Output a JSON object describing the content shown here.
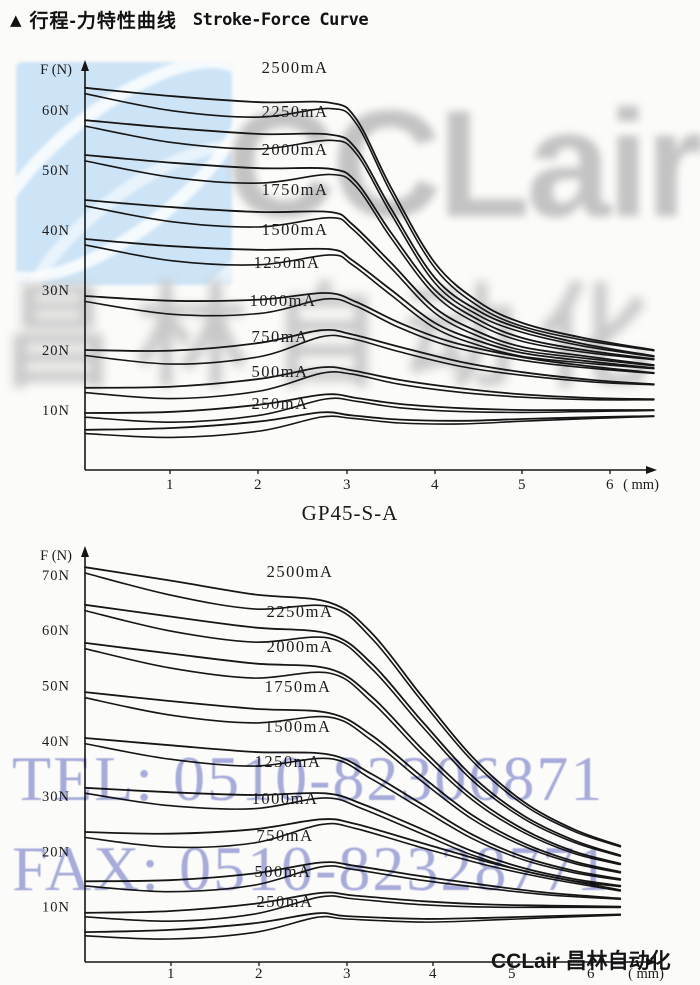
{
  "page": {
    "header_marker": "▲",
    "header_title_cn": "行程-力特性曲线",
    "header_title_en": "Stroke-Force Curve",
    "footer_brand": "CCLair 昌林自动化"
  },
  "watermarks": {
    "logo_text": "CCLair",
    "logo_cn": "昌林自动化",
    "tel": "TEL: 0510-82306871",
    "fax": "FAX: 0510-82328771",
    "tel_color": "#7c84cf",
    "logo_gray": "#c3c3c3",
    "logo_blue_bg": "#cde4f6"
  },
  "chart_data": [
    {
      "type": "line",
      "title": "",
      "y_label": "F (N)",
      "x_unit_label": "( mm)",
      "x_ticks": [
        "1",
        "2",
        "3",
        "4",
        "5",
        "6"
      ],
      "y_tick_labels": [
        "10N",
        "20N",
        "30N",
        "40N",
        "50N",
        "60N"
      ],
      "x_range_mm": [
        0,
        6.5
      ],
      "y_range_N": [
        0,
        68
      ],
      "grid": false,
      "legend": "inline-labels",
      "series": [
        {
          "label": "2500mA",
          "current_mA": 2500,
          "hysteresis_N": 2.8,
          "points_mm_N": [
            [
              0,
              63.7
            ],
            [
              1,
              62.3
            ],
            [
              2,
              61.3
            ],
            [
              2.8,
              61.2
            ],
            [
              3.1,
              58.5
            ],
            [
              3.5,
              47
            ],
            [
              4,
              34.5
            ],
            [
              4.5,
              28
            ],
            [
              5,
              24.5
            ],
            [
              5.7,
              22
            ],
            [
              6.5,
              20
            ]
          ]
        },
        {
          "label": "2250mA",
          "current_mA": 2250,
          "hysteresis_N": 2.8,
          "points_mm_N": [
            [
              0,
              58.3
            ],
            [
              1,
              57
            ],
            [
              2,
              56
            ],
            [
              2.8,
              55.9
            ],
            [
              3.1,
              53.5
            ],
            [
              3.5,
              43.5
            ],
            [
              4,
              32
            ],
            [
              4.5,
              26.5
            ],
            [
              5,
              23.5
            ],
            [
              5.7,
              21
            ],
            [
              6.5,
              19
            ]
          ]
        },
        {
          "label": "2000mA",
          "current_mA": 2000,
          "hysteresis_N": 2.8,
          "points_mm_N": [
            [
              0,
              52.5
            ],
            [
              1,
              51.2
            ],
            [
              2,
              50.3
            ],
            [
              2.8,
              50.2
            ],
            [
              3.1,
              48
            ],
            [
              3.5,
              39.5
            ],
            [
              4,
              30
            ],
            [
              4.5,
              25
            ],
            [
              5,
              22
            ],
            [
              5.7,
              20
            ],
            [
              6.5,
              18.5
            ]
          ]
        },
        {
          "label": "1750mA",
          "current_mA": 1750,
          "hysteresis_N": 2.8,
          "points_mm_N": [
            [
              0,
              45
            ],
            [
              1,
              43.8
            ],
            [
              2,
              43
            ],
            [
              2.8,
              43
            ],
            [
              3.05,
              41
            ],
            [
              3.5,
              34.5
            ],
            [
              4,
              27
            ],
            [
              4.5,
              23
            ],
            [
              5,
              20.5
            ],
            [
              5.7,
              19
            ],
            [
              6.5,
              17.5
            ]
          ]
        },
        {
          "label": "1500mA",
          "current_mA": 1500,
          "hysteresis_N": 2.8,
          "points_mm_N": [
            [
              0,
              38.5
            ],
            [
              1,
              37.3
            ],
            [
              2,
              36.7
            ],
            [
              2.8,
              36.8
            ],
            [
              3.05,
              35
            ],
            [
              3.5,
              30
            ],
            [
              4,
              24.5
            ],
            [
              4.5,
              21.5
            ],
            [
              5,
              19.5
            ],
            [
              5.7,
              18.2
            ],
            [
              6.5,
              17
            ]
          ]
        },
        {
          "label": "1250mA",
          "current_mA": 1250,
          "hysteresis_N": 2.6,
          "points_mm_N": [
            [
              0,
              29
            ],
            [
              1,
              28.2
            ],
            [
              2,
              28.4
            ],
            [
              2.75,
              29.5
            ],
            [
              3.1,
              28
            ],
            [
              3.6,
              24.5
            ],
            [
              4.2,
              21.3
            ],
            [
              5,
              18.8
            ],
            [
              5.7,
              17.4
            ],
            [
              6.5,
              16.2
            ]
          ]
        },
        {
          "label": "1000mA",
          "current_mA": 1000,
          "hysteresis_N": 2.6,
          "points_mm_N": [
            [
              0,
              20
            ],
            [
              1,
              19.9
            ],
            [
              2,
              21.2
            ],
            [
              2.7,
              23.3
            ],
            [
              3.05,
              22.6
            ],
            [
              3.6,
              20.5
            ],
            [
              4.3,
              18
            ],
            [
              5,
              16.3
            ],
            [
              5.8,
              15
            ],
            [
              6.5,
              14.3
            ]
          ]
        },
        {
          "label": "750mA",
          "current_mA": 750,
          "hysteresis_N": 2.3,
          "points_mm_N": [
            [
              0,
              13.7
            ],
            [
              1,
              13.9
            ],
            [
              2,
              15.2
            ],
            [
              2.7,
              17.1
            ],
            [
              3.05,
              16.6
            ],
            [
              3.6,
              15
            ],
            [
              4.3,
              13.6
            ],
            [
              5,
              12.6
            ],
            [
              5.8,
              12
            ],
            [
              6.5,
              11.8
            ]
          ]
        },
        {
          "label": "500mA",
          "current_mA": 500,
          "hysteresis_N": 2.0,
          "points_mm_N": [
            [
              0,
              9.5
            ],
            [
              1,
              9.7
            ],
            [
              2,
              10.9
            ],
            [
              2.75,
              12.6
            ],
            [
              3.1,
              12
            ],
            [
              3.6,
              11
            ],
            [
              4.3,
              10.3
            ],
            [
              5,
              10
            ],
            [
              5.8,
              10
            ],
            [
              6.5,
              10
            ]
          ]
        },
        {
          "label": "250mA",
          "current_mA": 250,
          "hysteresis_N": 1.8,
          "points_mm_N": [
            [
              0,
              6.7
            ],
            [
              1,
              7
            ],
            [
              2,
              8.1
            ],
            [
              2.7,
              9.6
            ],
            [
              3.05,
              9.1
            ],
            [
              3.6,
              8.4
            ],
            [
              4.3,
              8.2
            ],
            [
              5,
              8.5
            ],
            [
              5.8,
              8.8
            ],
            [
              6.5,
              9
            ]
          ]
        }
      ]
    },
    {
      "type": "line",
      "title": "GP45-S-A",
      "y_label": "F (N)",
      "x_unit_label": "( mm)",
      "x_ticks": [
        "1",
        "2",
        "3",
        "4",
        "5",
        "6"
      ],
      "y_tick_labels": [
        "10N",
        "20N",
        "30N",
        "40N",
        "50N",
        "60N",
        "70N"
      ],
      "x_range_mm": [
        0,
        6.4
      ],
      "y_range_N": [
        0,
        75
      ],
      "grid": false,
      "legend": "inline-labels",
      "series": [
        {
          "label": "2500mA",
          "current_mA": 2500,
          "hysteresis_N": 3.0,
          "points_mm_N": [
            [
              0,
              71.4
            ],
            [
              1,
              69
            ],
            [
              2,
              66.5
            ],
            [
              2.9,
              65
            ],
            [
              3.4,
              59.5
            ],
            [
              4,
              48
            ],
            [
              4.6,
              37
            ],
            [
              5.2,
              29
            ],
            [
              5.8,
              24
            ],
            [
              6.35,
              21
            ]
          ]
        },
        {
          "label": "2250mA",
          "current_mA": 2250,
          "hysteresis_N": 3.0,
          "points_mm_N": [
            [
              0,
              64.6
            ],
            [
              1,
              62.5
            ],
            [
              2,
              60.5
            ],
            [
              2.9,
              59.3
            ],
            [
              3.4,
              54
            ],
            [
              4,
              43.5
            ],
            [
              4.6,
              33.5
            ],
            [
              5.2,
              26.5
            ],
            [
              5.8,
              22
            ],
            [
              6.35,
              19.3
            ]
          ]
        },
        {
          "label": "2000mA",
          "current_mA": 2000,
          "hysteresis_N": 3.0,
          "points_mm_N": [
            [
              0,
              57.7
            ],
            [
              1,
              55.8
            ],
            [
              2,
              54
            ],
            [
              2.9,
              53
            ],
            [
              3.4,
              48
            ],
            [
              4,
              38.5
            ],
            [
              4.6,
              30
            ],
            [
              5.2,
              24
            ],
            [
              5.8,
              20
            ],
            [
              6.35,
              17.8
            ]
          ]
        },
        {
          "label": "1750mA",
          "current_mA": 1750,
          "hysteresis_N": 2.9,
          "points_mm_N": [
            [
              0,
              48.8
            ],
            [
              1,
              47.2
            ],
            [
              2,
              45.8
            ],
            [
              2.9,
              45
            ],
            [
              3.4,
              41
            ],
            [
              4,
              33.5
            ],
            [
              4.6,
              26.5
            ],
            [
              5.2,
              21.5
            ],
            [
              5.8,
              18.2
            ],
            [
              6.35,
              16.3
            ]
          ]
        },
        {
          "label": "1500mA",
          "current_mA": 1500,
          "hysteresis_N": 2.9,
          "points_mm_N": [
            [
              0,
              40.5
            ],
            [
              1,
              39.2
            ],
            [
              2,
              38
            ],
            [
              2.9,
              37.5
            ],
            [
              3.4,
              34
            ],
            [
              4,
              28.5
            ],
            [
              4.6,
              23
            ],
            [
              5.2,
              19
            ],
            [
              5.8,
              16.5
            ],
            [
              6.35,
              15
            ]
          ]
        },
        {
          "label": "1250mA",
          "current_mA": 1250,
          "hysteresis_N": 2.8,
          "points_mm_N": [
            [
              0,
              31.5
            ],
            [
              1,
              30.7
            ],
            [
              2,
              30.2
            ],
            [
              2.85,
              30.5
            ],
            [
              3.3,
              28.5
            ],
            [
              4,
              24
            ],
            [
              4.6,
              20
            ],
            [
              5.2,
              17
            ],
            [
              5.8,
              15
            ],
            [
              6.35,
              13.8
            ]
          ]
        },
        {
          "label": "1000mA",
          "current_mA": 1000,
          "hysteresis_N": 2.8,
          "points_mm_N": [
            [
              0,
              23.5
            ],
            [
              1,
              23.2
            ],
            [
              2,
              24
            ],
            [
              2.8,
              25.8
            ],
            [
              3.2,
              25
            ],
            [
              4,
              21.5
            ],
            [
              4.8,
              18
            ],
            [
              5.5,
              15.5
            ],
            [
              6.35,
              13
            ]
          ]
        },
        {
          "label": "750mA",
          "current_mA": 750,
          "hysteresis_N": 2.4,
          "points_mm_N": [
            [
              0,
              14.6
            ],
            [
              1,
              14.8
            ],
            [
              2,
              16
            ],
            [
              2.8,
              18
            ],
            [
              3.2,
              17.4
            ],
            [
              4,
              15.5
            ],
            [
              4.8,
              13.8
            ],
            [
              5.5,
              12.5
            ],
            [
              6.35,
              11.5
            ]
          ]
        },
        {
          "label": "500mA",
          "current_mA": 500,
          "hysteresis_N": 2.1,
          "points_mm_N": [
            [
              0,
              8.9
            ],
            [
              1,
              9.2
            ],
            [
              2,
              10.5
            ],
            [
              2.8,
              12.5
            ],
            [
              3.2,
              12
            ],
            [
              4,
              11
            ],
            [
              4.8,
              10.4
            ],
            [
              5.5,
              10.2
            ],
            [
              6.35,
              10
            ]
          ]
        },
        {
          "label": "250mA",
          "current_mA": 250,
          "hysteresis_N": 1.9,
          "points_mm_N": [
            [
              0,
              5.4
            ],
            [
              1,
              5.8
            ],
            [
              2,
              7
            ],
            [
              2.75,
              8.8
            ],
            [
              3.1,
              8.3
            ],
            [
              4,
              7.8
            ],
            [
              4.8,
              8
            ],
            [
              5.5,
              8.3
            ],
            [
              6.35,
              8.6
            ]
          ]
        }
      ]
    }
  ]
}
